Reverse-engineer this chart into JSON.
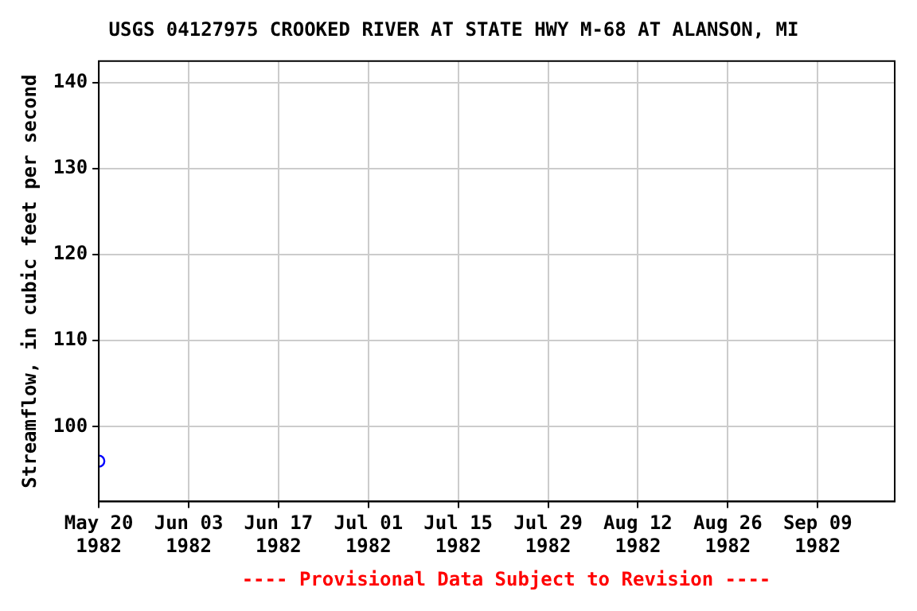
{
  "chart_data": {
    "type": "scatter",
    "title": "USGS 04127975 CROOKED RIVER AT STATE HWY M-68 AT ALANSON, MI",
    "ylabel": "Streamflow, in cubic feet per second",
    "annotations": [
      "---- Provisional Data Subject to Revision ----"
    ],
    "x": [
      "1982-05-20"
    ],
    "series": [
      {
        "color": "#0000ff",
        "values": [
          96
        ]
      }
    ],
    "marker": "circle",
    "xlim": [
      "1982-05-20",
      "1982-09-21"
    ],
    "xticks": [
      {
        "value": "1982-05-20",
        "label": "May 20 1982"
      },
      {
        "value": "1982-06-03",
        "label": "Jun 03 1982"
      },
      {
        "value": "1982-06-17",
        "label": "Jun 17 1982"
      },
      {
        "value": "1982-07-01",
        "label": "Jul 01 1982"
      },
      {
        "value": "1982-07-15",
        "label": "Jul 15 1982"
      },
      {
        "value": "1982-07-29",
        "label": "Jul 29 1982"
      },
      {
        "value": "1982-08-12",
        "label": "Aug 12 1982"
      },
      {
        "value": "1982-08-26",
        "label": "Aug 26 1982"
      },
      {
        "value": "1982-09-09",
        "label": "Sep 09 1982"
      }
    ],
    "ylim": [
      91.3,
      142.5
    ],
    "yticks": [
      100,
      110,
      120,
      130,
      140
    ],
    "grid": true
  }
}
